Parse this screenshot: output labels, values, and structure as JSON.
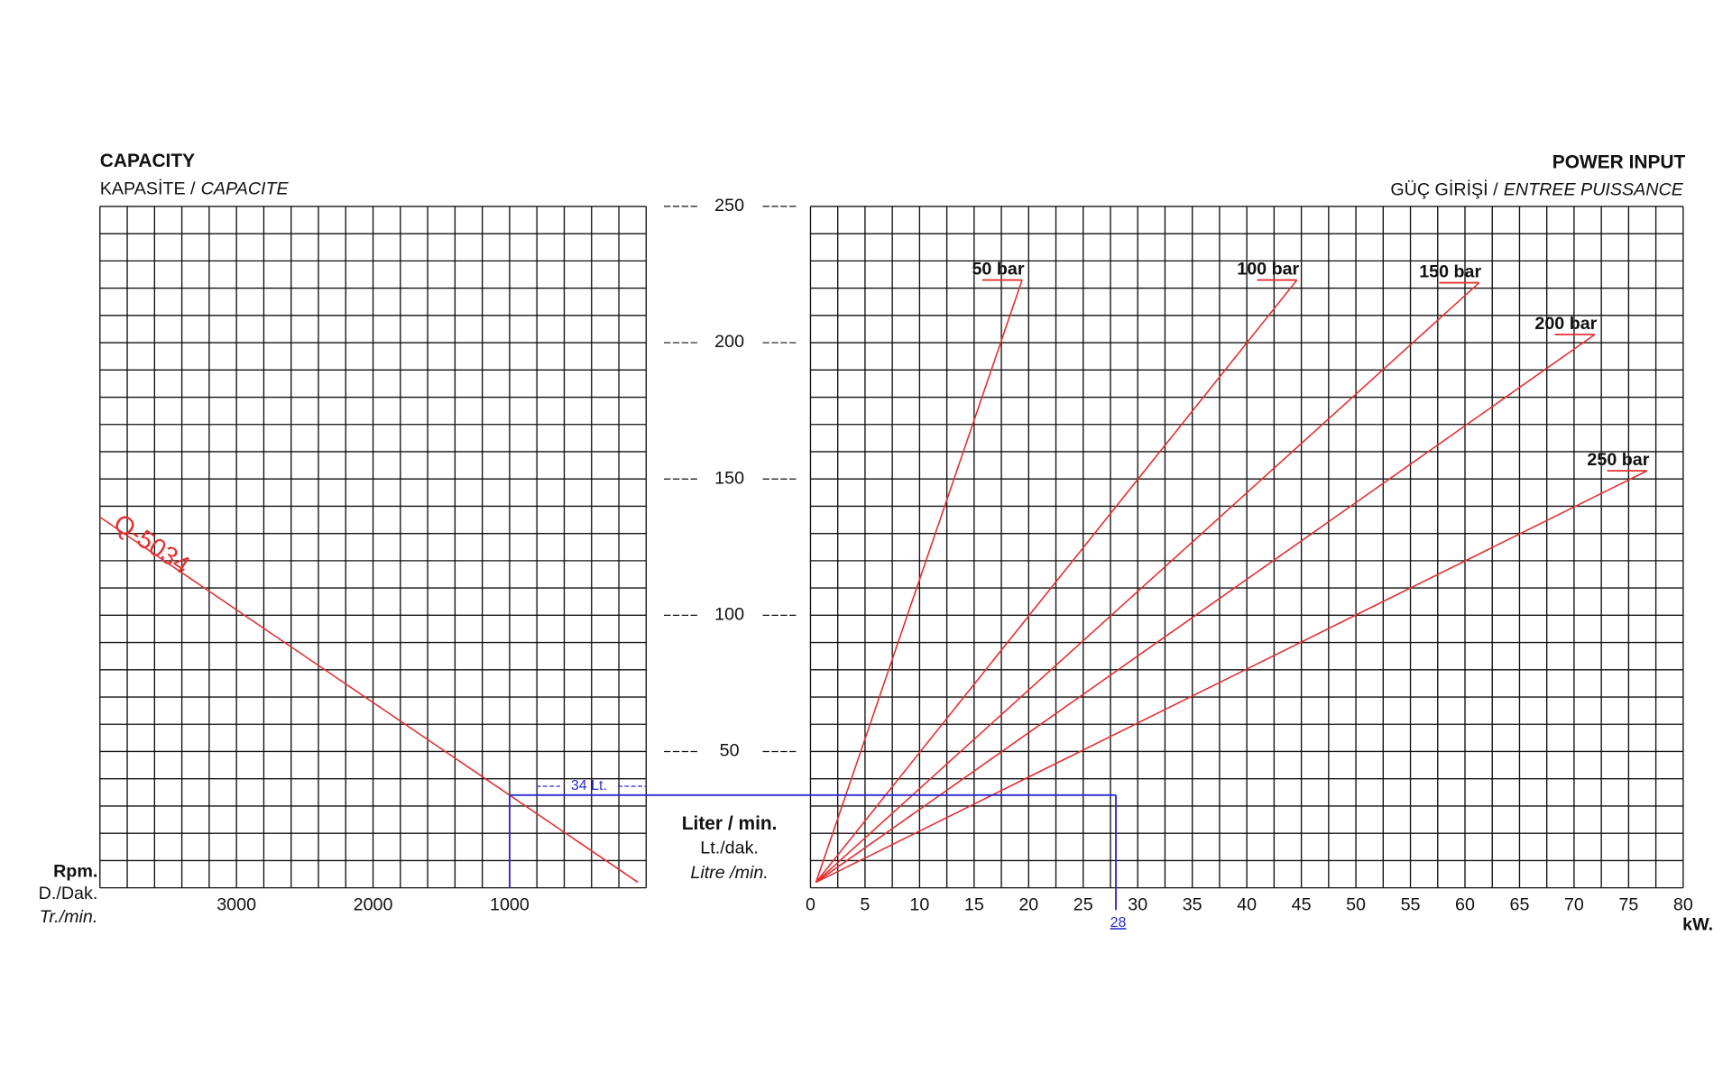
{
  "chart_data": [
    {
      "type": "line",
      "title": "CAPACITY",
      "subtitle": [
        "KAPASİTE /",
        "CAPACITE"
      ],
      "x_label": [
        "Rpm.",
        "D./Dak.",
        "Tr./min."
      ],
      "y_label": [
        "Liter / min.",
        "Lt./dak.",
        "Litre /min."
      ],
      "xlim": [
        4000,
        0
      ],
      "xticks": [
        3000,
        2000,
        1000
      ],
      "ylim": [
        0,
        250
      ],
      "yticks": [
        50,
        100,
        150,
        200,
        250
      ],
      "grid": true,
      "series": [
        {
          "name": "Q-5034",
          "color": "#e53030",
          "x": [
            4000,
            60
          ],
          "values": [
            136,
            2
          ]
        }
      ],
      "reading": {
        "x": 1000,
        "y": 34,
        "label": "34 Lt.",
        "color": "#2b2bd0"
      }
    },
    {
      "type": "line",
      "title": "POWER INPUT",
      "subtitle": [
        "GÜÇ GİRİŞİ /",
        "ENTREE PUISSANCE"
      ],
      "x_label": "kW.",
      "xlim": [
        0,
        80
      ],
      "xticks": [
        0,
        5,
        10,
        15,
        20,
        25,
        30,
        35,
        40,
        45,
        50,
        55,
        60,
        65,
        70,
        75,
        80
      ],
      "ylim": [
        0,
        250
      ],
      "grid": true,
      "series": [
        {
          "name": "50 bar",
          "color": "#e53030",
          "x": [
            0.5,
            19.4
          ],
          "values": [
            2,
            223
          ]
        },
        {
          "name": "100 bar",
          "color": "#e53030",
          "x": [
            0.5,
            44.6
          ],
          "values": [
            2,
            223
          ]
        },
        {
          "name": "150 bar",
          "color": "#e53030",
          "x": [
            0.5,
            61.3
          ],
          "values": [
            2,
            222
          ]
        },
        {
          "name": "200 bar",
          "color": "#e53030",
          "x": [
            0.5,
            71.9
          ],
          "values": [
            2,
            203
          ]
        },
        {
          "name": "250 bar",
          "color": "#e53030",
          "x": [
            0.5,
            76.7
          ],
          "values": [
            2,
            153
          ]
        }
      ],
      "reading": {
        "x": 28,
        "y": 34,
        "label": "28",
        "color": "#2b2bd0"
      }
    }
  ]
}
